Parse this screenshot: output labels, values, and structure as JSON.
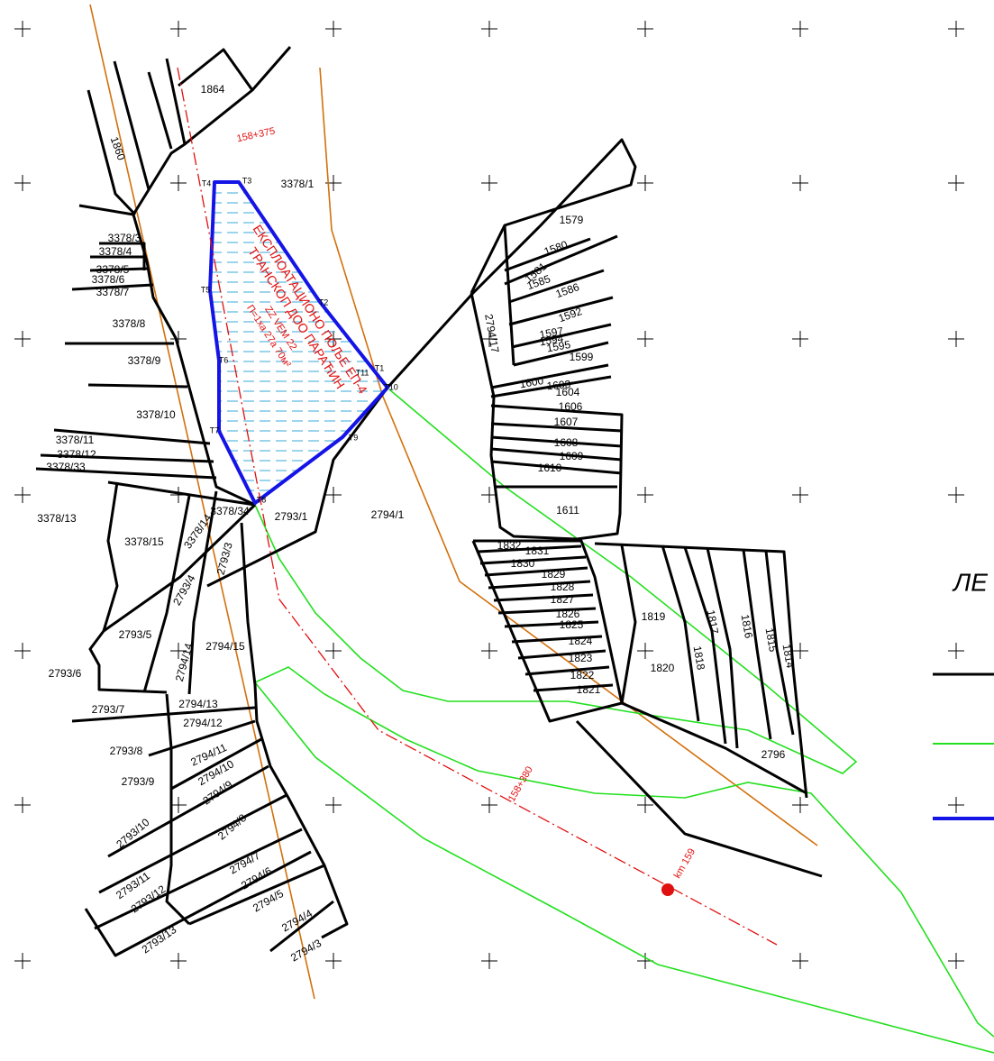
{
  "parcels": [
    "1864",
    "1860",
    "3378/1",
    "3378/3",
    "3378/4",
    "3378/5",
    "3378/6",
    "3378/7",
    "3378/8",
    "3378/9",
    "3378/10",
    "3378/11",
    "3378/12",
    "3378/33",
    "3378/13",
    "3378/15",
    "3378/14",
    "3378/34",
    "2793/4",
    "2793/3",
    "2793/1",
    "2794/1",
    "2793/5",
    "2794/14",
    "2794/15",
    "2793/6",
    "2793/7",
    "2794/13",
    "2794/12",
    "2793/8",
    "2794/11",
    "2794/10",
    "2793/9",
    "2794/9",
    "2793/10",
    "2794/8",
    "2793/11",
    "2794/7",
    "2794/6",
    "2793/12",
    "2794/5",
    "2793/13",
    "2794/4",
    "2794/3",
    "2794/17",
    "1579",
    "1580",
    "1581",
    "1585",
    "1586",
    "1592",
    "1597",
    "1594",
    "1595",
    "1599",
    "1600",
    "1603",
    "1604",
    "1606",
    "1607",
    "1608",
    "1609",
    "1610",
    "1611",
    "1832",
    "1831",
    "1830",
    "1829",
    "1828",
    "1827",
    "1826",
    "1825",
    "1824",
    "1823",
    "1822",
    "1821",
    "1819",
    "1820",
    "1818",
    "1817",
    "1816",
    "1815",
    "1814",
    "2796"
  ],
  "points": [
    "T1",
    "T2",
    "T3",
    "T4",
    "T5",
    "T6",
    "T7",
    "T8",
    "T9",
    "T10",
    "T11"
  ],
  "chainage": [
    "158+375",
    "158+380",
    "km 159"
  ],
  "field": {
    "name": "ЕКСПЛОАТАЦИОНО ПОЉЕ ЕП-4",
    "company": "ТРАНСКОП ДОО ПАРАЋИН",
    "code": "ZZ VEM 22",
    "area": "П=1ха 27а 70м²"
  },
  "legend": {
    "title": "ЛЕ"
  }
}
